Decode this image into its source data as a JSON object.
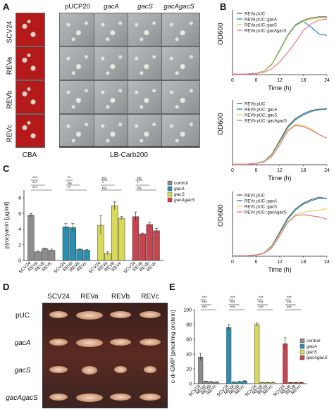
{
  "figure": {
    "panel_labels": {
      "a": "A",
      "b": "B",
      "c": "C",
      "d": "D",
      "e": "E"
    },
    "panel_a": {
      "column_labels": [
        "pUCP20",
        "gacA",
        "gacS",
        "gacAgacS"
      ],
      "row_labels": [
        "SCV24",
        "REVa",
        "REVb",
        "REVc"
      ],
      "bottom_left": "CBA",
      "bottom_right": "LB-Carb200",
      "colors": {
        "cba": "#b51a1a",
        "lb": "#9fa3a6"
      }
    },
    "panel_d": {
      "column_labels": [
        "SCV24",
        "REVa",
        "REVb",
        "REVc"
      ],
      "row_labels": [
        "pUC",
        "gacA",
        "gacS",
        "gacAgacS"
      ]
    }
  },
  "chart_data": [
    {
      "type": "line",
      "panel": "B1",
      "ylabel": "OD600",
      "xlabel": "Time (h)",
      "x": [
        0,
        2,
        4,
        6,
        8,
        10,
        12,
        14,
        16,
        18,
        20,
        22,
        24
      ],
      "xticks": [
        0,
        6,
        12,
        18,
        24
      ],
      "yticks": [
        0,
        0.5,
        1,
        1.5,
        2,
        2.5
      ],
      "xlim": [
        0,
        24
      ],
      "ylim": [
        0,
        2.8
      ],
      "legend": "top-left",
      "series": [
        {
          "name": "REVa pUC",
          "color": "#6a6a6a",
          "values": [
            0.02,
            0.02,
            0.03,
            0.06,
            0.15,
            0.45,
            1.05,
            1.7,
            2.15,
            2.35,
            2.45,
            2.5,
            2.5
          ]
        },
        {
          "name": "REVa pUC::gacA",
          "color": "#2b8fb3",
          "values": [
            0.02,
            0.02,
            0.03,
            0.06,
            0.15,
            0.45,
            1.05,
            1.7,
            2.15,
            2.3,
            2.05,
            1.75,
            1.7
          ]
        },
        {
          "name": "REVa pUC::gacS",
          "color": "#d9d95a",
          "values": [
            0.02,
            0.02,
            0.03,
            0.06,
            0.14,
            0.42,
            1.0,
            1.65,
            2.1,
            2.3,
            2.4,
            2.45,
            2.45
          ]
        },
        {
          "name": "REVa pUC::gacAgacS",
          "color": "#ee7a8a",
          "values": [
            0.02,
            0.02,
            0.03,
            0.05,
            0.1,
            0.25,
            0.55,
            0.95,
            1.4,
            1.9,
            2.2,
            2.35,
            2.4
          ]
        }
      ]
    },
    {
      "type": "line",
      "panel": "B2",
      "ylabel": "OD600",
      "xlabel": "Time (h)",
      "x": [
        0,
        2,
        4,
        6,
        8,
        10,
        12,
        14,
        16,
        18,
        20,
        22,
        24
      ],
      "xticks": [
        0,
        6,
        12,
        18,
        24
      ],
      "yticks": [
        0,
        0.5,
        1,
        1.5,
        2,
        2.5
      ],
      "xlim": [
        0,
        24
      ],
      "ylim": [
        0,
        2.8
      ],
      "legend": "top-left",
      "series": [
        {
          "name": "REVb pUC",
          "color": "#6a6a6a",
          "values": [
            0.02,
            0.02,
            0.03,
            0.06,
            0.15,
            0.45,
            1.05,
            1.65,
            2.0,
            2.2,
            2.35,
            2.4,
            2.42
          ]
        },
        {
          "name": "REVb pUC::gacA",
          "color": "#2b8fb3",
          "values": [
            0.02,
            0.02,
            0.03,
            0.06,
            0.15,
            0.42,
            1.0,
            1.6,
            1.95,
            2.15,
            2.3,
            2.38,
            2.4
          ]
        },
        {
          "name": "REVb pUC::gacS",
          "color": "#d9d95a",
          "values": [
            0.02,
            0.02,
            0.03,
            0.06,
            0.14,
            0.4,
            0.95,
            1.5,
            1.75,
            1.7,
            1.55,
            1.3,
            1.15
          ]
        },
        {
          "name": "REVb pUC::gacAgacS",
          "color": "#ee7a8a",
          "values": [
            0.02,
            0.02,
            0.03,
            0.05,
            0.12,
            0.35,
            0.85,
            1.45,
            1.7,
            1.65,
            1.5,
            1.3,
            1.15
          ]
        }
      ]
    },
    {
      "type": "line",
      "panel": "B3",
      "ylabel": "OD600",
      "xlabel": "Time (h)",
      "x": [
        0,
        2,
        4,
        6,
        8,
        10,
        12,
        14,
        16,
        18,
        20,
        22,
        24
      ],
      "xticks": [
        0,
        6,
        12,
        18,
        24
      ],
      "yticks": [
        0,
        0.5,
        1,
        1.5,
        2,
        2.5
      ],
      "xlim": [
        0,
        24
      ],
      "ylim": [
        0,
        2.8
      ],
      "legend": "top-left",
      "series": [
        {
          "name": "REVc pUC",
          "color": "#6a6a6a",
          "values": [
            0.02,
            0.02,
            0.03,
            0.06,
            0.15,
            0.45,
            1.05,
            1.65,
            2.05,
            2.3,
            2.45,
            2.55,
            2.5
          ]
        },
        {
          "name": "REVc pUC::gacA",
          "color": "#2b8fb3",
          "values": [
            0.02,
            0.02,
            0.03,
            0.06,
            0.15,
            0.43,
            1.0,
            1.6,
            2.0,
            2.25,
            2.4,
            2.5,
            2.5
          ]
        },
        {
          "name": "REVc pUC::gacS",
          "color": "#d9d95a",
          "values": [
            0.02,
            0.02,
            0.03,
            0.06,
            0.14,
            0.4,
            0.95,
            1.5,
            1.8,
            1.9,
            1.95,
            2.0,
            2.05
          ]
        },
        {
          "name": "REVc pUC::gacAgacS",
          "color": "#ee7a8a",
          "values": [
            0.02,
            0.02,
            0.03,
            0.05,
            0.12,
            0.35,
            0.88,
            1.45,
            1.75,
            1.8,
            1.75,
            1.7,
            1.6
          ]
        }
      ]
    },
    {
      "type": "bar",
      "panel": "C",
      "ylabel": "pyocyanin [µg/ml]",
      "ylim": [
        0,
        9
      ],
      "yticks": [
        0,
        2,
        4,
        6,
        8
      ],
      "categories": [
        "SCV24",
        "REVa",
        "REVb",
        "REVc"
      ],
      "legend": "right",
      "groups": [
        {
          "name": "control",
          "color": "#8c8c8c",
          "values": [
            5.8,
            1.1,
            1.5,
            1.3
          ],
          "errors": [
            0.2,
            0.1,
            0.1,
            0.15
          ]
        },
        {
          "name": "gacA",
          "color": "#2b8fb3",
          "values": [
            4.3,
            4.2,
            1.4,
            1.3
          ],
          "errors": [
            0.4,
            0.5,
            0.1,
            0.1
          ]
        },
        {
          "name": "gacS",
          "color": "#d9d95a",
          "values": [
            4.5,
            0.9,
            7.0,
            5.4
          ],
          "errors": [
            1.2,
            0.2,
            0.5,
            0.2
          ]
        },
        {
          "name": "gacAgacS",
          "color": "#c8454f",
          "values": [
            5.6,
            3.4,
            4.6,
            3.8
          ],
          "errors": [
            0.6,
            0.1,
            0.3,
            0.3
          ]
        }
      ],
      "significance": [
        [
          "***",
          "***",
          "***"
        ],
        [
          "**",
          "ns",
          "**"
        ],
        [
          "ns",
          "*",
          "ns"
        ],
        [
          "ns",
          "*",
          "ns"
        ]
      ]
    },
    {
      "type": "bar",
      "panel": "E",
      "ylabel": "c-di-GMP [pmol/mg protein]",
      "ylim": [
        0,
        100
      ],
      "yticks": [
        0,
        20,
        40,
        60,
        80,
        100
      ],
      "categories": [
        "SCV24",
        "REVa",
        "REVb",
        "REVc"
      ],
      "legend": "right",
      "groups": [
        {
          "name": "control",
          "color": "#8c8c8c",
          "values": [
            36,
            3,
            2.5,
            2
          ],
          "errors": [
            5,
            0.5,
            0.5,
            0.5
          ]
        },
        {
          "name": "gacA",
          "color": "#2b8fb3",
          "values": [
            76,
            2,
            2.5,
            3.5
          ],
          "errors": [
            4,
            0.5,
            0.5,
            0.5
          ]
        },
        {
          "name": "gacS",
          "color": "#d9d95a",
          "values": [
            80,
            1.5,
            1.5,
            1.5
          ],
          "errors": [
            2,
            0.3,
            0.3,
            0.3
          ]
        },
        {
          "name": "gacAgacS",
          "color": "#c8454f",
          "values": [
            54,
            1.5,
            1.5,
            1.5
          ],
          "errors": [
            8,
            0.3,
            0.3,
            0.3
          ]
        }
      ],
      "significance": [
        [
          "***",
          "***",
          "***"
        ],
        [
          "***",
          "***",
          "***"
        ],
        [
          "***",
          "***",
          "***"
        ],
        [
          "***",
          "***",
          "***"
        ]
      ]
    }
  ]
}
